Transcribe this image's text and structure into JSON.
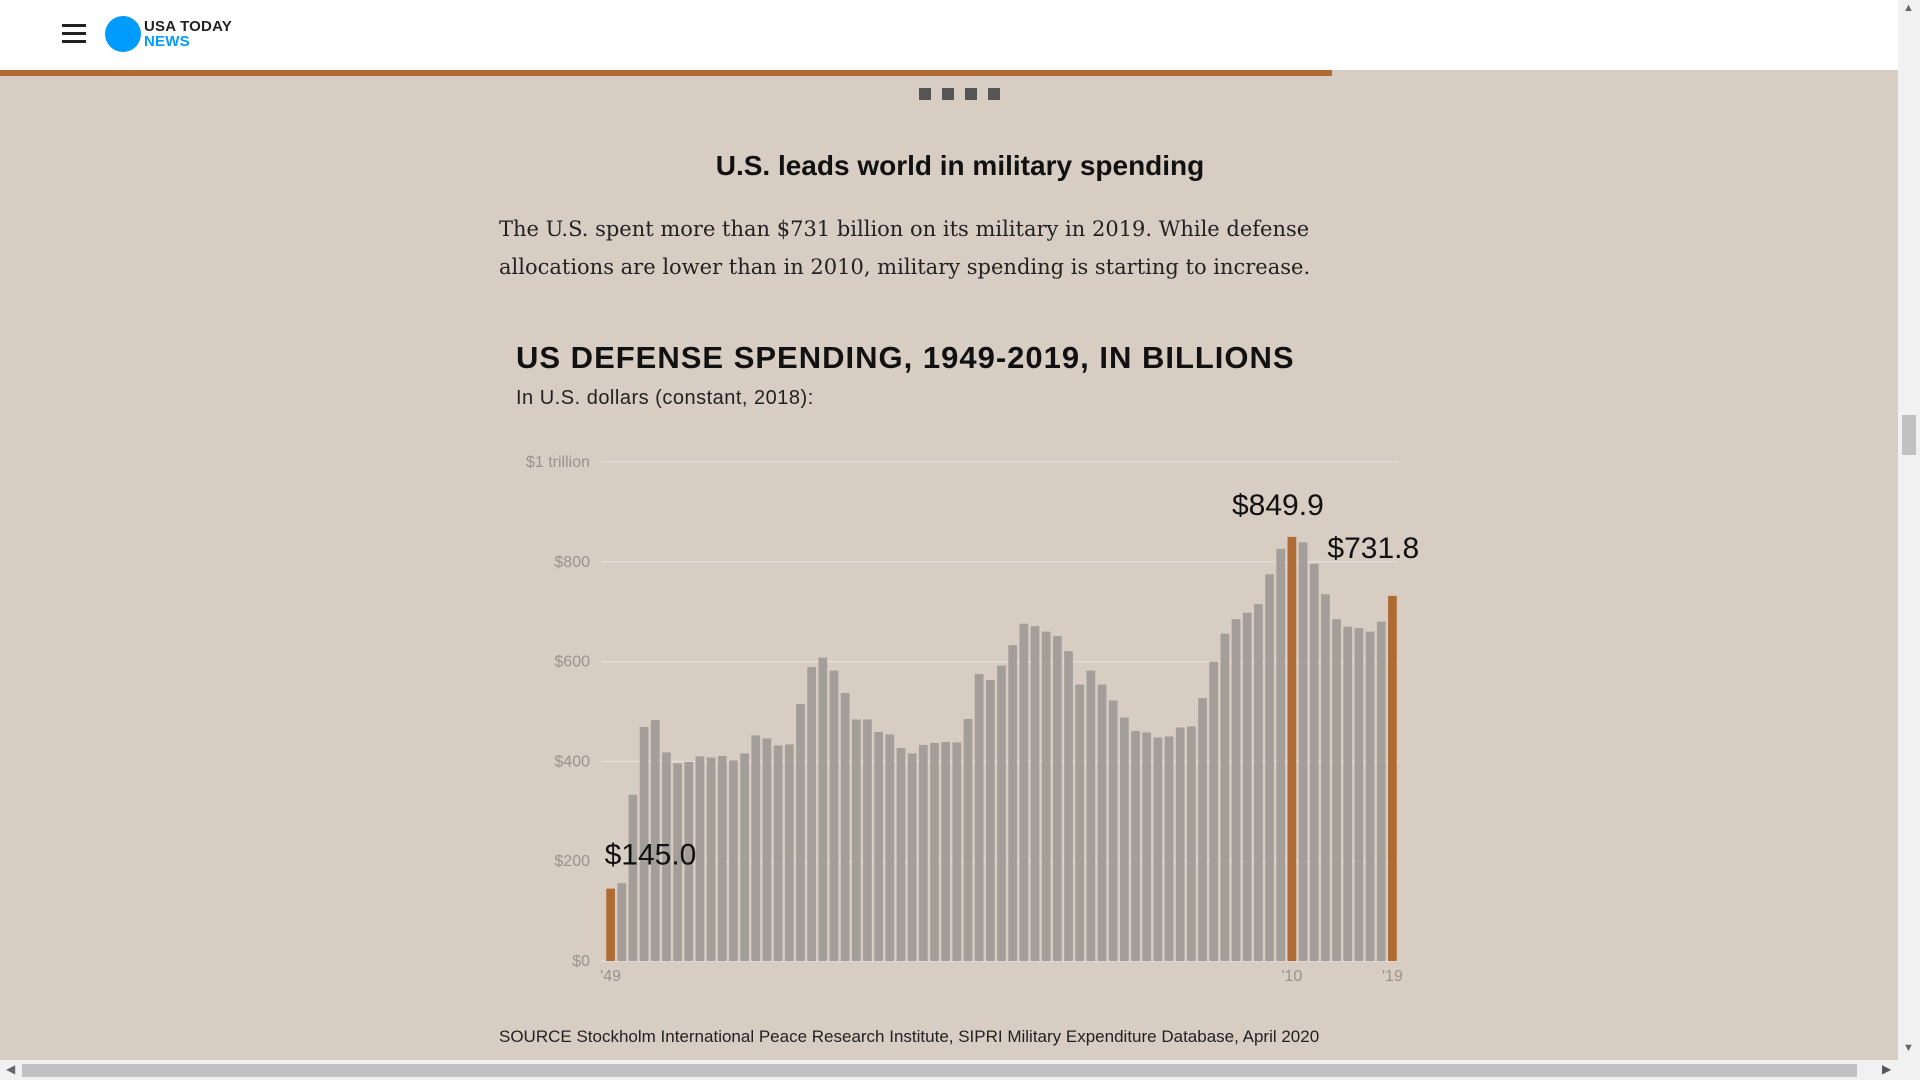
{
  "header": {
    "brand_top": "USA TODAY",
    "brand_bottom": "NEWS",
    "menu_icon": "hamburger-menu-icon",
    "brand_color": "#009bff"
  },
  "progress": {
    "fraction": 0.702,
    "color": "#b06a33"
  },
  "slide_dots": 4,
  "article": {
    "section_title": "U.S. leads world in military spending",
    "intro": "The U.S. spent more than $731 billion on its military in 2019. While defense allocations are lower than in 2010, military spending is starting to increase."
  },
  "chart_data": {
    "type": "bar",
    "title": "US DEFENSE SPENDING, 1949-2019, IN BILLIONS",
    "subtitle": "In U.S. dollars (constant, 2018):",
    "xlabel": "",
    "ylabel": "",
    "ylim": [
      0,
      1000
    ],
    "y_ticks": [
      {
        "value": 0,
        "label": "$0"
      },
      {
        "value": 200,
        "label": "$200"
      },
      {
        "value": 400,
        "label": "$400"
      },
      {
        "value": 600,
        "label": "$600"
      },
      {
        "value": 800,
        "label": "$800"
      },
      {
        "value": 1000,
        "label": "$1 trillion"
      }
    ],
    "x_ticks": [
      {
        "year": 1949,
        "label": "'49"
      },
      {
        "year": 2010,
        "label": "'10"
      },
      {
        "year": 2019,
        "label": "'19"
      }
    ],
    "years": [
      1949,
      1950,
      1951,
      1952,
      1953,
      1954,
      1955,
      1956,
      1957,
      1958,
      1959,
      1960,
      1961,
      1962,
      1963,
      1964,
      1965,
      1966,
      1967,
      1968,
      1969,
      1970,
      1971,
      1972,
      1973,
      1974,
      1975,
      1976,
      1977,
      1978,
      1979,
      1980,
      1981,
      1982,
      1983,
      1984,
      1985,
      1986,
      1987,
      1988,
      1989,
      1990,
      1991,
      1992,
      1993,
      1994,
      1995,
      1996,
      1997,
      1998,
      1999,
      2000,
      2001,
      2002,
      2003,
      2004,
      2005,
      2006,
      2007,
      2008,
      2009,
      2010,
      2011,
      2012,
      2013,
      2014,
      2015,
      2016,
      2017,
      2018,
      2019
    ],
    "values": [
      145.0,
      156,
      333,
      469,
      483,
      418,
      396,
      399,
      410,
      408,
      411,
      402,
      416,
      452,
      446,
      432,
      434,
      515,
      589,
      608,
      582,
      537,
      484,
      484,
      459,
      454,
      427,
      416,
      433,
      437,
      439,
      438,
      485,
      575,
      563,
      592,
      633,
      676,
      671,
      660,
      651,
      621,
      554,
      582,
      554,
      522,
      488,
      461,
      458,
      448,
      450,
      468,
      470,
      527,
      600,
      656,
      685,
      698,
      715,
      775,
      826,
      849.9,
      839,
      796,
      735,
      685,
      670,
      667,
      660,
      680,
      731.8
    ],
    "highlight_color": "#b06a33",
    "bar_color": "#a39e9a",
    "highlighted_years": [
      1949,
      2010,
      2019
    ],
    "annotations": [
      {
        "year": 1949,
        "label": "$145.0"
      },
      {
        "year": 2010,
        "label": "$849.9"
      },
      {
        "year": 2019,
        "label": "$731.8"
      }
    ],
    "grid": true
  },
  "source": "SOURCE Stockholm International Peace Research Institute, SIPRI Military Expenditure Database, April 2020"
}
